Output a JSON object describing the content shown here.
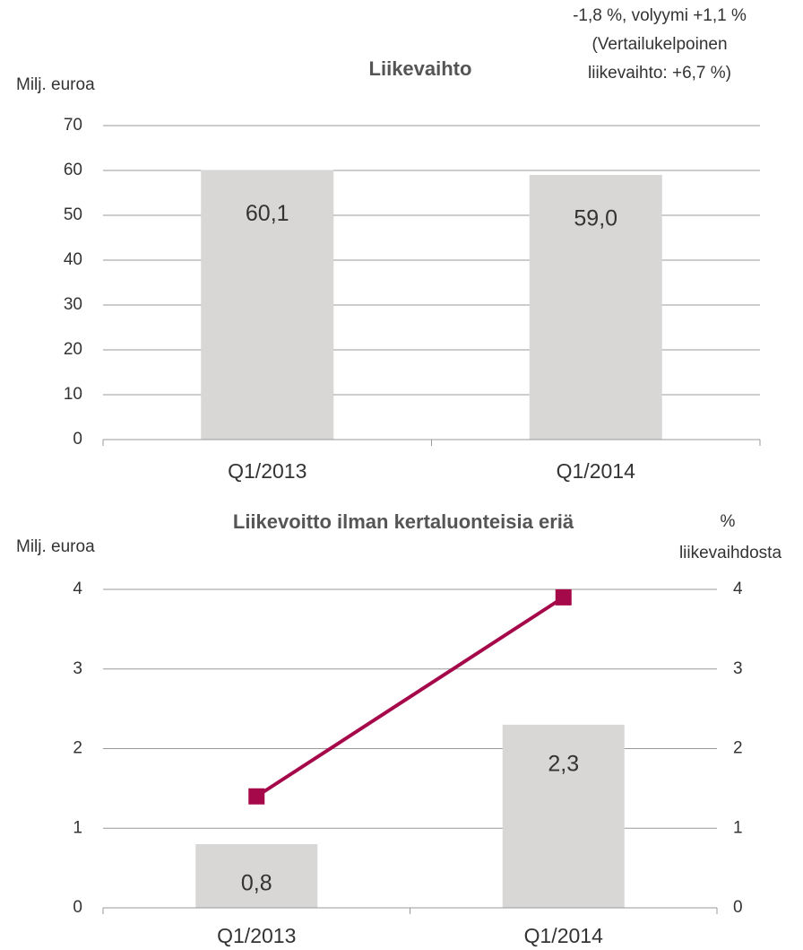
{
  "chart_data": [
    {
      "type": "bar",
      "title": "Liikevaihto",
      "ylabel": "Milj. euroa",
      "annotation": [
        "-1,8 %, volyymi +1,1 %",
        "(Vertailukelpoinen",
        "liikevaihto: +6,7 %)"
      ],
      "categories": [
        "Q1/2013",
        "Q1/2014"
      ],
      "values": [
        60.1,
        59.0
      ],
      "value_labels": [
        "60,1",
        "59,0"
      ],
      "color": "#d9d6d6",
      "ylim": [
        0,
        70
      ],
      "yticks": [
        0,
        10,
        20,
        30,
        40,
        50,
        60,
        70
      ],
      "grid": true
    },
    {
      "type": "bar_line",
      "title": "Liikevoitto ilman kertaluonteisia eriä",
      "ylabel": "Milj. euroa",
      "y2label": [
        "%",
        "liikevaihdosta"
      ],
      "categories": [
        "Q1/2013",
        "Q1/2014"
      ],
      "series": [
        {
          "type": "bar",
          "color": "#d9d6d6",
          "values": [
            0.8,
            2.3
          ],
          "value_labels": [
            "0,8",
            "2,3"
          ]
        },
        {
          "type": "line",
          "axis": "y2",
          "color": "#a6094a",
          "values": [
            1.4,
            3.9
          ]
        }
      ],
      "ylim": [
        0,
        4
      ],
      "yticks": [
        0,
        1,
        2,
        3,
        4
      ],
      "y2lim": [
        0,
        4
      ],
      "y2ticks": [
        0,
        1,
        2,
        3,
        4
      ],
      "grid": true
    }
  ]
}
